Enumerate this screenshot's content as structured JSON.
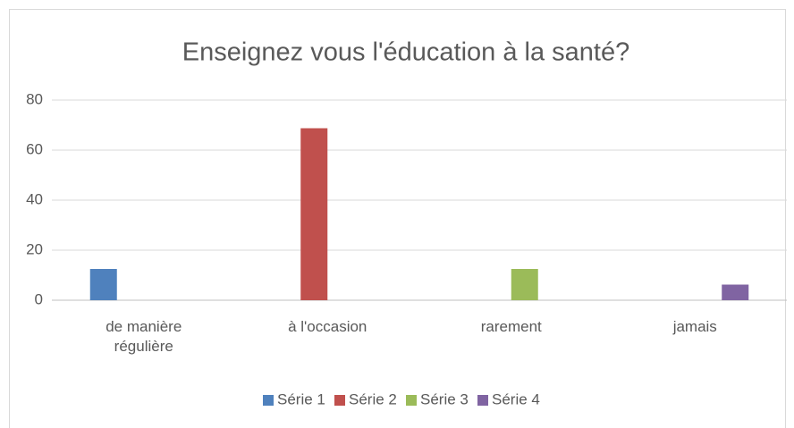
{
  "chart_data": {
    "type": "bar",
    "title": "Enseignez vous l'éducation à la santé?",
    "categories": [
      "de manière régulière",
      "à l'occasion",
      "rarement",
      "jamais"
    ],
    "series": [
      {
        "name": "Série 1",
        "color": "#4f81bd",
        "values": [
          12.5,
          null,
          null,
          null
        ]
      },
      {
        "name": "Série 2",
        "color": "#c0504d",
        "values": [
          null,
          68.75,
          null,
          null
        ]
      },
      {
        "name": "Série 3",
        "color": "#9bbb59",
        "values": [
          null,
          null,
          12.5,
          null
        ]
      },
      {
        "name": "Série 4",
        "color": "#8064a2",
        "values": [
          null,
          null,
          null,
          6.25
        ]
      }
    ],
    "ylim": [
      0,
      80
    ],
    "yticks": [
      0,
      20,
      40,
      60,
      80
    ],
    "grid": true,
    "legend": "bottom"
  }
}
